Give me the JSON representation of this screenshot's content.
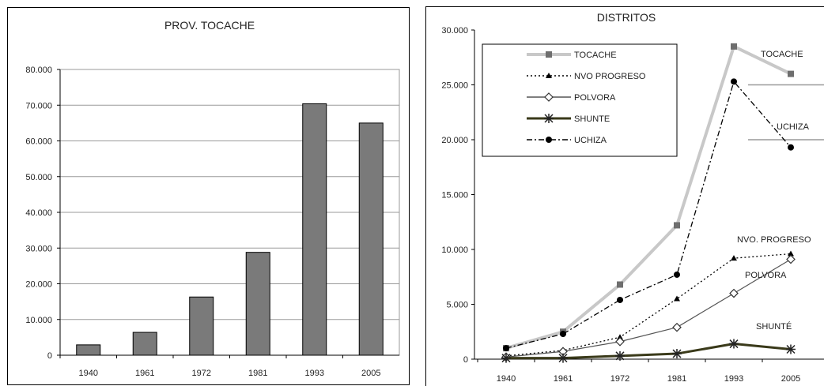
{
  "colors": {
    "bar_fill": "#7a7a7a",
    "tocache": "#c8c8c8",
    "marker_gray": "#6e6e6e",
    "black": "#000000",
    "shunte": "#3a3a1a",
    "grid": "#9a9a9a"
  },
  "chart_data": [
    {
      "type": "bar",
      "title": "PROV. TOCACHE",
      "xlabel": "",
      "ylabel": "",
      "categories": [
        "1940",
        "1961",
        "1972",
        "1981",
        "1993",
        "2005"
      ],
      "values": [
        2900,
        6400,
        16300,
        28800,
        70400,
        65000
      ],
      "ylim": [
        0,
        80000
      ],
      "yticks": [
        0,
        10000,
        20000,
        30000,
        40000,
        50000,
        60000,
        70000,
        80000
      ],
      "ytick_labels": [
        "0",
        "10.000",
        "20.000",
        "30.000",
        "40.000",
        "50.000",
        "60.000",
        "70.000",
        "80.000"
      ],
      "grid": true
    },
    {
      "type": "line",
      "title": "DISTRITOS",
      "xlabel": "",
      "ylabel": "",
      "categories": [
        "1940",
        "1961",
        "1972",
        "1981",
        "1993",
        "2005"
      ],
      "ylim": [
        0,
        30000
      ],
      "yticks": [
        0,
        5000,
        10000,
        15000,
        20000,
        25000,
        30000
      ],
      "ytick_labels": [
        "0",
        "5.000",
        "10.000",
        "15.000",
        "20.000",
        "25.000",
        "30.000"
      ],
      "grid": false,
      "legend_position": "top-left",
      "series": [
        {
          "name": "TOCACHE",
          "values": [
            1000,
            2500,
            6800,
            12200,
            28500,
            26000
          ],
          "end_label": "TOCACHE"
        },
        {
          "name": "NVO PROGRESO",
          "values": [
            300,
            800,
            2000,
            5500,
            9200,
            9600
          ],
          "end_label": "NVO. PROGRESO"
        },
        {
          "name": "POLVORA",
          "values": [
            200,
            700,
            1600,
            2900,
            6000,
            9100
          ],
          "end_label": "POLVORA"
        },
        {
          "name": "SHUNTE",
          "values": [
            100,
            100,
            300,
            500,
            1400,
            900
          ],
          "end_label": "SHUNTÉ"
        },
        {
          "name": "UCHIZA",
          "values": [
            1000,
            2300,
            5400,
            7700,
            25300,
            19300
          ],
          "end_label": "UCHIZA"
        }
      ]
    }
  ]
}
